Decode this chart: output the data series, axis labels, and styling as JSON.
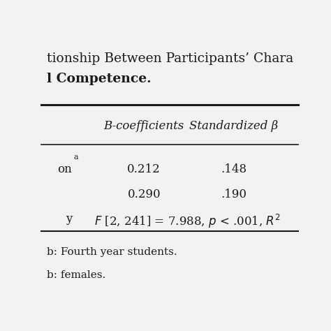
{
  "title_line1": "tionship Between Participants’ Chara",
  "title_line2": "l Competence.",
  "col_headers": [
    "B-coefficients",
    "Standardized β"
  ],
  "row1_label": "on",
  "row1_superscript": "a",
  "row1_vals": [
    "0.212",
    ".148"
  ],
  "row2_vals": [
    "0.290",
    ".190"
  ],
  "row3_label": "y",
  "note1": "b: Fourth year students.",
  "note2": "b: females.",
  "bg_color": "#f2f2f2",
  "text_color": "#1a1a1a",
  "title_fontsize": 13.5,
  "header_fontsize": 12,
  "body_fontsize": 12,
  "note_fontsize": 11
}
